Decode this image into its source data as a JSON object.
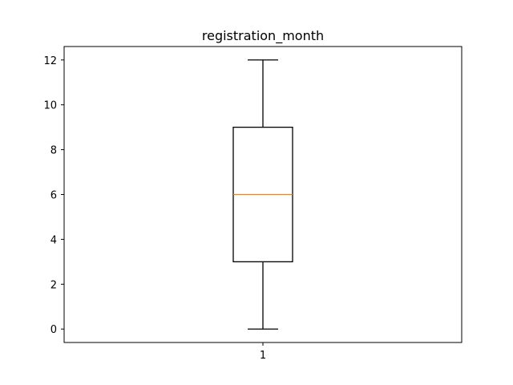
{
  "chart_data": {
    "type": "box",
    "title": "registration_month",
    "xlabel": "",
    "ylabel": "",
    "categories": [
      "1"
    ],
    "boxes": [
      {
        "category": "1",
        "whisker_low": 0,
        "q1": 3,
        "median": 6,
        "q3": 9,
        "whisker_high": 12
      }
    ],
    "ylim": [
      -0.6,
      12.6
    ],
    "yticks": [
      0,
      2,
      4,
      6,
      8,
      10,
      12
    ],
    "grid": false,
    "legend": "none",
    "colors": {
      "box": "#000000",
      "median": "#ff7f0e",
      "whisker": "#000000",
      "axes": "#000000"
    }
  }
}
